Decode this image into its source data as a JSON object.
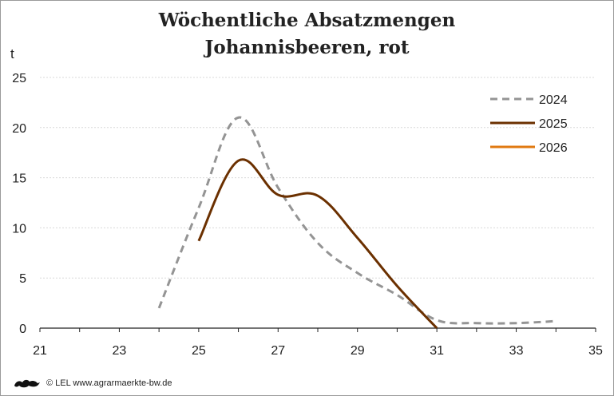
{
  "chart_data": {
    "type": "line",
    "title": "Wöchentliche Absatzmengen",
    "subtitle": "Johannisbeeren, rot",
    "ylabel": "t",
    "xlabel": "",
    "xlim": [
      21,
      35
    ],
    "ylim": [
      0,
      25
    ],
    "xticks": [
      21,
      23,
      25,
      27,
      29,
      31,
      33,
      35
    ],
    "yticks": [
      0,
      5,
      10,
      15,
      20,
      25
    ],
    "grid": true,
    "legend_position": "top-right",
    "series": [
      {
        "name": "2024",
        "color": "#949494",
        "dash": "dashed",
        "x": [
          24,
          25,
          26,
          27,
          28,
          29,
          30,
          31,
          32,
          33,
          34
        ],
        "y": [
          2.0,
          12.0,
          21.0,
          14.0,
          8.5,
          5.5,
          3.3,
          0.8,
          0.5,
          0.5,
          0.7
        ]
      },
      {
        "name": "2025",
        "color": "#6b3000",
        "dash": "solid",
        "x": [
          25,
          26,
          27,
          28,
          29,
          30,
          31
        ],
        "y": [
          8.7,
          16.7,
          13.3,
          13.2,
          9.0,
          4.2,
          0.0
        ]
      },
      {
        "name": "2026",
        "color": "#e07a10",
        "dash": "solid",
        "x": [],
        "y": []
      }
    ]
  },
  "footer": {
    "text": "© LEL www.agrarmaerkte-bw.de",
    "logo_icon": "baden-wuerttemberg-lion-logo"
  }
}
